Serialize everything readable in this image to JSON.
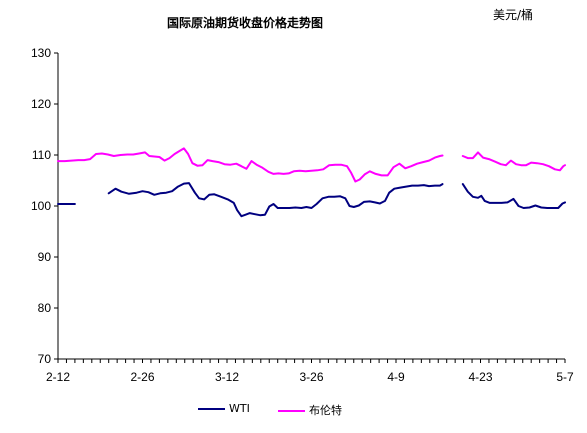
{
  "chart_data": {
    "type": "line",
    "title": "国际原油期货收盘价格走势图",
    "unit": "美元/桶",
    "xlabel": "",
    "ylabel": "",
    "ylim": [
      70,
      130
    ],
    "y_ticks": [
      "130",
      "120",
      "110",
      "100",
      "90",
      "80",
      "70"
    ],
    "x_tick_labels": [
      "2-12",
      "2-26",
      "3-12",
      "3-26",
      "4-9",
      "4-23",
      "5-7"
    ],
    "grid": false,
    "legend_position": "bottom",
    "series": [
      {
        "name": "WTI",
        "color": "#000080",
        "points": [
          [
            0.0,
            100.4
          ],
          [
            2.0,
            100.4
          ],
          [
            2.01,
            null
          ],
          [
            6.0,
            102.5
          ],
          [
            6.8,
            103.4
          ],
          [
            7.5,
            102.8
          ],
          [
            8.4,
            102.4
          ],
          [
            9.3,
            102.6
          ],
          [
            10.0,
            102.9
          ],
          [
            10.7,
            102.7
          ],
          [
            11.4,
            102.2
          ],
          [
            12.1,
            102.5
          ],
          [
            12.8,
            102.6
          ],
          [
            13.5,
            102.9
          ],
          [
            14.2,
            103.8
          ],
          [
            14.9,
            104.4
          ],
          [
            15.5,
            104.5
          ],
          [
            16.2,
            102.6
          ],
          [
            16.7,
            101.5
          ],
          [
            17.3,
            101.3
          ],
          [
            17.9,
            102.2
          ],
          [
            18.5,
            102.3
          ],
          [
            19.3,
            101.8
          ],
          [
            20.1,
            101.3
          ],
          [
            20.8,
            100.6
          ],
          [
            21.2,
            99.2
          ],
          [
            21.7,
            98.0
          ],
          [
            22.2,
            98.3
          ],
          [
            22.7,
            98.6
          ],
          [
            23.3,
            98.4
          ],
          [
            23.9,
            98.2
          ],
          [
            24.5,
            98.3
          ],
          [
            25.0,
            99.9
          ],
          [
            25.5,
            100.4
          ],
          [
            26.0,
            99.6
          ],
          [
            26.7,
            99.6
          ],
          [
            27.4,
            99.6
          ],
          [
            28.1,
            99.7
          ],
          [
            28.8,
            99.6
          ],
          [
            29.4,
            99.8
          ],
          [
            30.0,
            99.6
          ],
          [
            30.6,
            100.4
          ],
          [
            31.3,
            101.5
          ],
          [
            32.0,
            101.8
          ],
          [
            32.7,
            101.8
          ],
          [
            33.4,
            101.9
          ],
          [
            34.0,
            101.5
          ],
          [
            34.5,
            100.0
          ],
          [
            35.0,
            99.8
          ],
          [
            35.6,
            100.1
          ],
          [
            36.2,
            100.8
          ],
          [
            36.9,
            100.9
          ],
          [
            37.5,
            100.7
          ],
          [
            38.1,
            100.5
          ],
          [
            38.7,
            101.0
          ],
          [
            39.2,
            102.6
          ],
          [
            39.8,
            103.4
          ],
          [
            40.5,
            103.6
          ],
          [
            41.2,
            103.8
          ],
          [
            41.9,
            104.0
          ],
          [
            42.6,
            104.0
          ],
          [
            43.3,
            104.1
          ],
          [
            43.9,
            103.9
          ],
          [
            44.6,
            104.0
          ],
          [
            45.2,
            104.0
          ],
          [
            45.5,
            104.3
          ],
          [
            45.51,
            null
          ],
          [
            47.9,
            104.3
          ],
          [
            48.5,
            102.8
          ],
          [
            49.1,
            101.8
          ],
          [
            49.7,
            101.6
          ],
          [
            50.1,
            102.0
          ],
          [
            50.5,
            101.0
          ],
          [
            51.1,
            100.6
          ],
          [
            51.8,
            100.6
          ],
          [
            52.5,
            100.6
          ],
          [
            53.2,
            100.7
          ],
          [
            53.9,
            101.4
          ],
          [
            54.5,
            100.0
          ],
          [
            55.1,
            99.6
          ],
          [
            55.8,
            99.7
          ],
          [
            56.5,
            100.1
          ],
          [
            57.2,
            99.7
          ],
          [
            57.9,
            99.6
          ],
          [
            58.6,
            99.6
          ],
          [
            59.2,
            99.6
          ],
          [
            59.7,
            100.5
          ],
          [
            60.0,
            100.7
          ]
        ]
      },
      {
        "name": "布伦特",
        "color": "#ff00ff",
        "points": [
          [
            0.0,
            108.8
          ],
          [
            0.8,
            108.8
          ],
          [
            1.6,
            108.9
          ],
          [
            2.4,
            109.0
          ],
          [
            3.1,
            109.0
          ],
          [
            3.8,
            109.2
          ],
          [
            4.5,
            110.2
          ],
          [
            5.2,
            110.3
          ],
          [
            5.9,
            110.1
          ],
          [
            6.6,
            109.8
          ],
          [
            7.4,
            110.0
          ],
          [
            8.2,
            110.1
          ],
          [
            8.9,
            110.1
          ],
          [
            9.6,
            110.3
          ],
          [
            10.3,
            110.5
          ],
          [
            10.8,
            109.8
          ],
          [
            11.4,
            109.7
          ],
          [
            12.0,
            109.6
          ],
          [
            12.6,
            108.9
          ],
          [
            13.2,
            109.4
          ],
          [
            13.8,
            110.2
          ],
          [
            14.4,
            110.8
          ],
          [
            14.9,
            111.3
          ],
          [
            15.4,
            110.2
          ],
          [
            15.9,
            108.4
          ],
          [
            16.5,
            107.9
          ],
          [
            17.1,
            108.0
          ],
          [
            17.7,
            109.0
          ],
          [
            18.3,
            108.8
          ],
          [
            19.0,
            108.6
          ],
          [
            19.7,
            108.2
          ],
          [
            20.4,
            108.1
          ],
          [
            21.1,
            108.3
          ],
          [
            21.7,
            107.8
          ],
          [
            22.3,
            107.3
          ],
          [
            22.9,
            108.8
          ],
          [
            23.5,
            108.1
          ],
          [
            24.2,
            107.5
          ],
          [
            24.9,
            106.7
          ],
          [
            25.5,
            106.3
          ],
          [
            26.1,
            106.4
          ],
          [
            26.7,
            106.3
          ],
          [
            27.3,
            106.4
          ],
          [
            27.9,
            106.8
          ],
          [
            28.6,
            106.9
          ],
          [
            29.3,
            106.8
          ],
          [
            30.0,
            106.9
          ],
          [
            30.7,
            107.0
          ],
          [
            31.4,
            107.2
          ],
          [
            32.1,
            108.0
          ],
          [
            32.8,
            108.1
          ],
          [
            33.5,
            108.1
          ],
          [
            34.2,
            107.8
          ],
          [
            34.7,
            106.5
          ],
          [
            35.2,
            104.8
          ],
          [
            35.7,
            105.2
          ],
          [
            36.3,
            106.2
          ],
          [
            36.9,
            106.8
          ],
          [
            37.6,
            106.3
          ],
          [
            38.3,
            106.0
          ],
          [
            39.0,
            106.0
          ],
          [
            39.7,
            107.6
          ],
          [
            40.4,
            108.3
          ],
          [
            41.1,
            107.4
          ],
          [
            41.8,
            107.8
          ],
          [
            42.5,
            108.3
          ],
          [
            43.2,
            108.6
          ],
          [
            43.9,
            108.9
          ],
          [
            44.6,
            109.5
          ],
          [
            45.2,
            109.8
          ],
          [
            45.5,
            109.9
          ],
          [
            45.51,
            null
          ],
          [
            47.9,
            109.8
          ],
          [
            48.5,
            109.4
          ],
          [
            49.1,
            109.4
          ],
          [
            49.7,
            110.5
          ],
          [
            50.3,
            109.5
          ],
          [
            51.0,
            109.2
          ],
          [
            51.7,
            108.7
          ],
          [
            52.4,
            108.2
          ],
          [
            53.0,
            108.0
          ],
          [
            53.6,
            108.9
          ],
          [
            54.2,
            108.2
          ],
          [
            54.8,
            108.0
          ],
          [
            55.4,
            108.0
          ],
          [
            56.0,
            108.5
          ],
          [
            56.7,
            108.4
          ],
          [
            57.4,
            108.2
          ],
          [
            58.1,
            107.8
          ],
          [
            58.8,
            107.2
          ],
          [
            59.4,
            107.0
          ],
          [
            59.8,
            107.8
          ],
          [
            60.0,
            108.0
          ]
        ]
      }
    ]
  }
}
